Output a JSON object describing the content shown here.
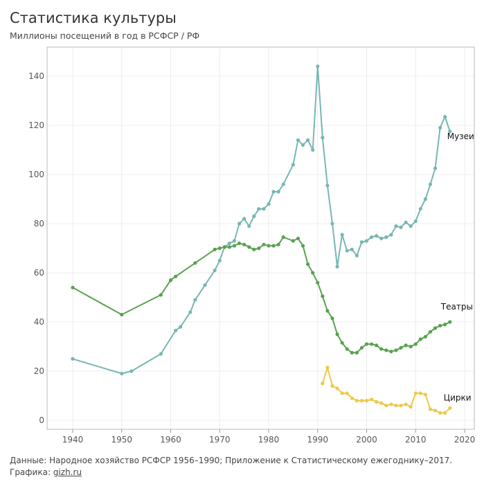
{
  "header": {
    "title": "Статистика культуры",
    "subtitle": "Миллионы посещений в год в РСФСР / РФ"
  },
  "footer": {
    "source": "Данные: Народное хозяйство РСФСР 1956–1990; Приложение к Статистическому ежегоднику–2017.",
    "graphics_label": "Графика:",
    "graphics_link": "gizh.ru"
  },
  "chart_data": {
    "type": "line",
    "title": "Статистика культуры",
    "subtitle": "Миллионы посещений в год в РСФСР / РФ",
    "xlabel": "",
    "ylabel": "",
    "xlim": [
      1935,
      2022
    ],
    "ylim": [
      -2,
      150
    ],
    "x_ticks": [
      1940,
      1950,
      1960,
      1970,
      1980,
      1990,
      2000,
      2010,
      2020
    ],
    "y_ticks": [
      0,
      20,
      40,
      60,
      80,
      100,
      120,
      140
    ],
    "grid": true,
    "legend": "labels at line ends",
    "series": [
      {
        "name": "Музеи",
        "color": "#76b7b2",
        "points": [
          [
            1940,
            25
          ],
          [
            1950,
            19
          ],
          [
            1952,
            20
          ],
          [
            1958,
            27
          ],
          [
            1961,
            36.5
          ],
          [
            1962,
            38
          ],
          [
            1964,
            44
          ],
          [
            1965,
            49
          ],
          [
            1967,
            55
          ],
          [
            1969,
            61
          ],
          [
            1970,
            65
          ],
          [
            1971,
            70.5
          ],
          [
            1972,
            72
          ],
          [
            1973,
            73
          ],
          [
            1974,
            80
          ],
          [
            1975,
            82
          ],
          [
            1976,
            79
          ],
          [
            1977,
            83
          ],
          [
            1978,
            86
          ],
          [
            1979,
            86
          ],
          [
            1980,
            88
          ],
          [
            1981,
            93
          ],
          [
            1982,
            93
          ],
          [
            1983,
            96
          ],
          [
            1985,
            104
          ],
          [
            1986,
            114
          ],
          [
            1987,
            112
          ],
          [
            1988,
            114
          ],
          [
            1989,
            110
          ],
          [
            1990,
            144
          ],
          [
            1991,
            115
          ],
          [
            1992,
            95.5
          ],
          [
            1993,
            80
          ],
          [
            1994,
            62.5
          ],
          [
            1995,
            75.5
          ],
          [
            1996,
            69
          ],
          [
            1997,
            69.5
          ],
          [
            1998,
            67
          ],
          [
            1999,
            72.5
          ],
          [
            2000,
            73
          ],
          [
            2001,
            74.5
          ],
          [
            2002,
            75
          ],
          [
            2003,
            74
          ],
          [
            2004,
            74.5
          ],
          [
            2005,
            75.5
          ],
          [
            2006,
            79
          ],
          [
            2007,
            78.5
          ],
          [
            2008,
            80.5
          ],
          [
            2009,
            79
          ],
          [
            2010,
            81
          ],
          [
            2011,
            86
          ],
          [
            2012,
            90
          ],
          [
            2013,
            96
          ],
          [
            2014,
            102.5
          ],
          [
            2015,
            119
          ],
          [
            2016,
            123.5
          ],
          [
            2017,
            117.5
          ]
        ]
      },
      {
        "name": "Театры",
        "color": "#59a14f",
        "points": [
          [
            1940,
            54
          ],
          [
            1950,
            43
          ],
          [
            1958,
            51
          ],
          [
            1960,
            57
          ],
          [
            1961,
            58.5
          ],
          [
            1965,
            64
          ],
          [
            1969,
            69.5
          ],
          [
            1970,
            70
          ],
          [
            1971,
            70.5
          ],
          [
            1972,
            70.5
          ],
          [
            1973,
            71
          ],
          [
            1974,
            72
          ],
          [
            1975,
            71.5
          ],
          [
            1976,
            70.5
          ],
          [
            1977,
            69.5
          ],
          [
            1978,
            70
          ],
          [
            1979,
            71.5
          ],
          [
            1980,
            71
          ],
          [
            1981,
            71
          ],
          [
            1982,
            71.5
          ],
          [
            1983,
            74.5
          ],
          [
            1985,
            73
          ],
          [
            1986,
            74
          ],
          [
            1987,
            71
          ],
          [
            1988,
            63.5
          ],
          [
            1989,
            60
          ],
          [
            1990,
            56
          ],
          [
            1991,
            50.5
          ],
          [
            1992,
            44.5
          ],
          [
            1993,
            41.5
          ],
          [
            1994,
            35
          ],
          [
            1995,
            31.5
          ],
          [
            1996,
            29
          ],
          [
            1997,
            27.5
          ],
          [
            1998,
            27.5
          ],
          [
            1999,
            29.5
          ],
          [
            2000,
            31
          ],
          [
            2001,
            31
          ],
          [
            2002,
            30.5
          ],
          [
            2003,
            29
          ],
          [
            2004,
            28.5
          ],
          [
            2005,
            28
          ],
          [
            2006,
            28.5
          ],
          [
            2007,
            29.5
          ],
          [
            2008,
            30.5
          ],
          [
            2009,
            30
          ],
          [
            2010,
            31
          ],
          [
            2011,
            33
          ],
          [
            2012,
            34
          ],
          [
            2013,
            36
          ],
          [
            2014,
            37.5
          ],
          [
            2015,
            38.5
          ],
          [
            2016,
            39
          ],
          [
            2017,
            40
          ]
        ]
      },
      {
        "name": "Цирки",
        "color": "#edc948",
        "points": [
          [
            1991,
            15
          ],
          [
            1992,
            21.5
          ],
          [
            1993,
            14
          ],
          [
            1994,
            13
          ],
          [
            1995,
            11
          ],
          [
            1996,
            11
          ],
          [
            1997,
            9
          ],
          [
            1998,
            8
          ],
          [
            1999,
            8
          ],
          [
            2000,
            8
          ],
          [
            2001,
            8.5
          ],
          [
            2002,
            7.5
          ],
          [
            2003,
            7
          ],
          [
            2004,
            6
          ],
          [
            2005,
            6.5
          ],
          [
            2006,
            6
          ],
          [
            2007,
            6
          ],
          [
            2008,
            6.5
          ],
          [
            2009,
            5.5
          ],
          [
            2010,
            11
          ],
          [
            2011,
            11
          ],
          [
            2012,
            10.5
          ],
          [
            2013,
            4.5
          ],
          [
            2014,
            4
          ],
          [
            2015,
            3
          ],
          [
            2016,
            3
          ],
          [
            2017,
            5
          ]
        ]
      }
    ]
  }
}
